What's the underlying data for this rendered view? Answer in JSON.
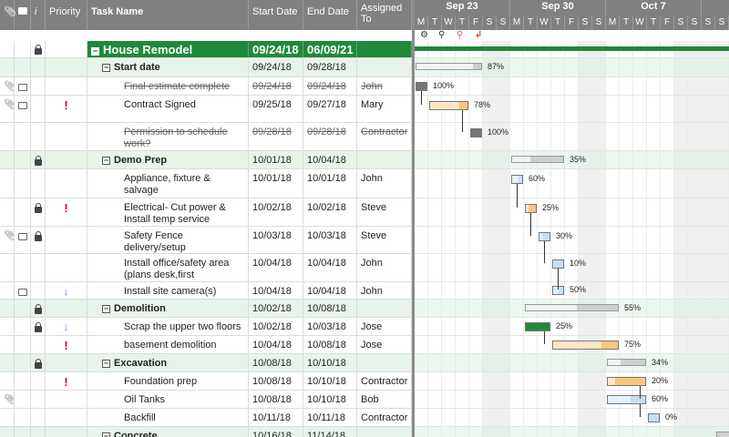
{
  "columns": {
    "info": "i",
    "priority": "Priority",
    "task": "Task Name",
    "start": "Start Date",
    "end": "End Date",
    "assigned": "Assigned To"
  },
  "timeline": {
    "weeks": [
      {
        "label": "Sep 23",
        "days": [
          "M",
          "T",
          "W",
          "T",
          "F",
          "S",
          "S"
        ]
      },
      {
        "label": "Sep 30",
        "days": [
          "M",
          "T",
          "W",
          "T",
          "F",
          "S",
          "S"
        ]
      },
      {
        "label": "Oct 7",
        "days": [
          "M",
          "T",
          "W",
          "T",
          "F",
          "S",
          "S"
        ]
      }
    ],
    "first_week_days": [
      "S",
      "S"
    ]
  },
  "toolbar": {
    "settings_icon": "gear-icon",
    "zoom_in_icon": "zoom-in-icon",
    "zoom_out_icon": "zoom-out-icon",
    "critical_path_icon": "critical-path-icon"
  },
  "colors": {
    "header": "#808080",
    "top_parent": "#1f8a3a",
    "parent_row": "#e8f4ea",
    "bar_orange": "#f8c77d",
    "bar_blue": "#c6def4",
    "bar_gray": "#cfcfcf",
    "bar_green": "#1f8a3a",
    "priority": "#d0021b"
  },
  "rows": [
    {
      "task": "House Remodel",
      "start": "09/24/18",
      "end": "06/09/21",
      "assigned": "",
      "level": 0,
      "type": "top",
      "lock": true
    },
    {
      "task": "Start date",
      "start": "09/24/18",
      "end": "09/28/18",
      "assigned": "",
      "level": 1,
      "type": "parent",
      "pct": "87%"
    },
    {
      "task": "Final estimate complete",
      "start": "09/24/18",
      "end": "09/24/18",
      "assigned": "John",
      "level": 2,
      "done": true,
      "clip": true,
      "comment": true,
      "pct": "100%"
    },
    {
      "task": "Contract Signed",
      "start": "09/25/18",
      "end": "09/27/18",
      "assigned": "Mary",
      "level": 2,
      "clip": true,
      "comment": true,
      "priority": "!",
      "pct": "78%"
    },
    {
      "task": "Permission to schedule work?",
      "start": "09/28/18",
      "end": "09/28/18",
      "assigned": "Contractor",
      "level": 2,
      "done": true,
      "pct": "100%"
    },
    {
      "task": "Demo Prep",
      "start": "10/01/18",
      "end": "10/04/18",
      "assigned": "",
      "level": 1,
      "type": "parent",
      "lock": true,
      "pct": "35%"
    },
    {
      "task": "Appliance, fixture & salvage",
      "start": "10/01/18",
      "end": "10/01/18",
      "assigned": "John",
      "level": 2,
      "pct": "60%"
    },
    {
      "task": "Electrical- Cut power & Install temp service",
      "start": "10/02/18",
      "end": "10/02/18",
      "assigned": "Steve",
      "level": 2,
      "lock": true,
      "priority": "!",
      "pct": "25%"
    },
    {
      "task": "Safety Fence delivery/setup",
      "start": "10/03/18",
      "end": "10/03/18",
      "assigned": "Steve",
      "level": 2,
      "clip": true,
      "comment": true,
      "lock": true,
      "pct": "30%"
    },
    {
      "task": "Install office/safety area (plans desk,first aid,phone)",
      "start": "10/04/18",
      "end": "10/04/18",
      "assigned": "John",
      "level": 2,
      "pct": "10%"
    },
    {
      "task": "Install site camera(s)",
      "start": "10/04/18",
      "end": "10/04/18",
      "assigned": "John",
      "level": 2,
      "comment": true,
      "priority": "↓",
      "pct": "50%"
    },
    {
      "task": "Demolition",
      "start": "10/02/18",
      "end": "10/08/18",
      "assigned": "",
      "level": 1,
      "type": "parent",
      "lock": true,
      "pct": "55%"
    },
    {
      "task": "Scrap the upper two floors",
      "start": "10/02/18",
      "end": "10/03/18",
      "assigned": "Jose",
      "level": 2,
      "lock": true,
      "priority": "↓",
      "pct": "25%"
    },
    {
      "task": "basement demolition",
      "start": "10/04/18",
      "end": "10/08/18",
      "assigned": "Jose",
      "level": 2,
      "priority": "!",
      "pct": "75%"
    },
    {
      "task": "Excavation",
      "start": "10/08/18",
      "end": "10/10/18",
      "assigned": "",
      "level": 1,
      "type": "parent",
      "lock": true,
      "pct": "34%"
    },
    {
      "task": "Foundation prep",
      "start": "10/08/18",
      "end": "10/10/18",
      "assigned": "Contractor",
      "level": 2,
      "priority": "!",
      "pct": "20%"
    },
    {
      "task": "Oil Tanks",
      "start": "10/08/18",
      "end": "10/10/18",
      "assigned": "Bob",
      "level": 2,
      "clip": true,
      "pct": "60%"
    },
    {
      "task": "Backfill",
      "start": "10/11/18",
      "end": "10/11/18",
      "assigned": "Contractor",
      "level": 2,
      "pct": "0%"
    },
    {
      "task": "Concrete",
      "start": "10/16/18",
      "end": "11/14/18",
      "assigned": "",
      "level": 1,
      "type": "parent"
    }
  ]
}
